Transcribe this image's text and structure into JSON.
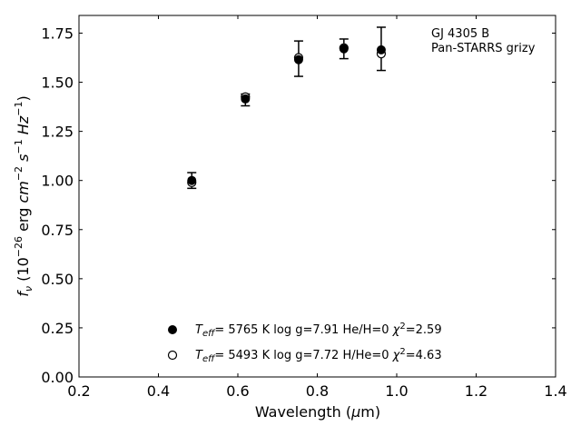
{
  "chart_data": {
    "type": "scatter",
    "annotation": [
      "GJ 4305 B",
      "Pan-STARRS grizy"
    ],
    "xlabel": "Wavelength (μm)",
    "ylabel": "f_ν (10^-26 erg cm^-2 s^-1 Hz^-1)",
    "xlim": [
      0.2,
      1.4
    ],
    "ylim": [
      0.0,
      1.84
    ],
    "xticks": [
      0.2,
      0.4,
      0.6,
      0.8,
      1.0,
      1.2,
      1.4
    ],
    "xtick_labels": [
      "0.2",
      "0.4",
      "0.6",
      "0.8",
      "1.0",
      "1.2",
      "1.4"
    ],
    "yticks": [
      0.0,
      0.25,
      0.5,
      0.75,
      1.0,
      1.25,
      1.5,
      1.75
    ],
    "ytick_labels": [
      "0.00",
      "0.25",
      "0.50",
      "0.75",
      "1.00",
      "1.25",
      "1.50",
      "1.75"
    ],
    "grid": false,
    "legend_position": "lower-center",
    "series": [
      {
        "name": "observed",
        "marker": "errorbar",
        "x": [
          0.484,
          0.619,
          0.753,
          0.867,
          0.961
        ],
        "y": [
          1.0,
          1.41,
          1.62,
          1.67,
          1.67
        ],
        "yerr": [
          0.04,
          0.03,
          0.09,
          0.05,
          0.11
        ]
      },
      {
        "name": "model-filled",
        "marker": "filled-circle",
        "legend": {
          "teff": "5765 K",
          "logg": "log g=7.91",
          "comp": "He/H=0",
          "chi2": "=2.59"
        },
        "x": [
          0.484,
          0.619,
          0.753,
          0.867,
          0.961
        ],
        "y": [
          1.0,
          1.415,
          1.615,
          1.67,
          1.665
        ]
      },
      {
        "name": "model-open",
        "marker": "open-circle",
        "legend": {
          "teff": "5493 K",
          "logg": "log g=7.72",
          "comp": "H/He=0",
          "chi2": "=4.63"
        },
        "x": [
          0.484,
          0.619,
          0.753,
          0.867,
          0.961
        ],
        "y": [
          0.99,
          1.425,
          1.625,
          1.675,
          1.645
        ]
      }
    ],
    "colors": {
      "marker": "#000000",
      "axes": "#000000",
      "background": "#ffffff"
    }
  }
}
